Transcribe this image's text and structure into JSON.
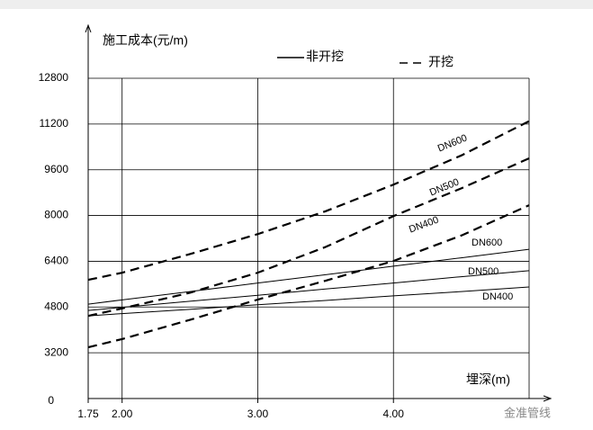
{
  "chart_data": {
    "type": "line",
    "title": "施工成本(元/m)",
    "x_label": "埋深(m)",
    "origin_label": "0",
    "x": [
      1.75,
      2.0,
      2.5,
      3.0,
      3.5,
      4.0,
      4.5,
      5.0
    ],
    "xlim": [
      1.75,
      5.0
    ],
    "xticks": [
      1.75,
      {
        "value": 2.0,
        "label": "2.00"
      },
      {
        "value": 3.0,
        "label": "3.00"
      },
      {
        "value": 4.0,
        "label": "4.00"
      }
    ],
    "ylim": [
      1600,
      12800
    ],
    "yticks": [
      3200,
      4800,
      6400,
      8000,
      9600,
      11200,
      12800
    ],
    "grid": true,
    "legend": [
      {
        "name": "非开挖",
        "dashed": false
      },
      {
        "name": "开挖",
        "dashed": true
      }
    ],
    "series": [
      {
        "name": "DN600",
        "group": "开挖",
        "dashed": true,
        "color": "#000000",
        "values": [
          5750,
          6000,
          6650,
          7350,
          8150,
          9080,
          10100,
          11300
        ]
      },
      {
        "name": "DN500",
        "group": "开挖",
        "dashed": true,
        "color": "#000000",
        "values": [
          4490,
          4750,
          5300,
          6000,
          6900,
          7980,
          8950,
          10000
        ]
      },
      {
        "name": "DN400",
        "group": "开挖",
        "dashed": true,
        "color": "#000000",
        "values": [
          3390,
          3680,
          4350,
          5060,
          5720,
          6410,
          7300,
          8360
        ]
      },
      {
        "name": "DN600",
        "group": "非开挖",
        "dashed": false,
        "color": "#000000",
        "values": [
          4900,
          5050,
          5340,
          5640,
          5930,
          6230,
          6520,
          6820
        ]
      },
      {
        "name": "DN500",
        "group": "非开挖",
        "dashed": false,
        "color": "#000000",
        "values": [
          4680,
          4790,
          5000,
          5210,
          5430,
          5640,
          5860,
          6070
        ]
      },
      {
        "name": "DN400",
        "group": "非开挖",
        "dashed": false,
        "color": "#000000",
        "values": [
          4490,
          4570,
          4720,
          4880,
          5030,
          5190,
          5340,
          5500
        ]
      }
    ],
    "watermark": "金准管线"
  }
}
